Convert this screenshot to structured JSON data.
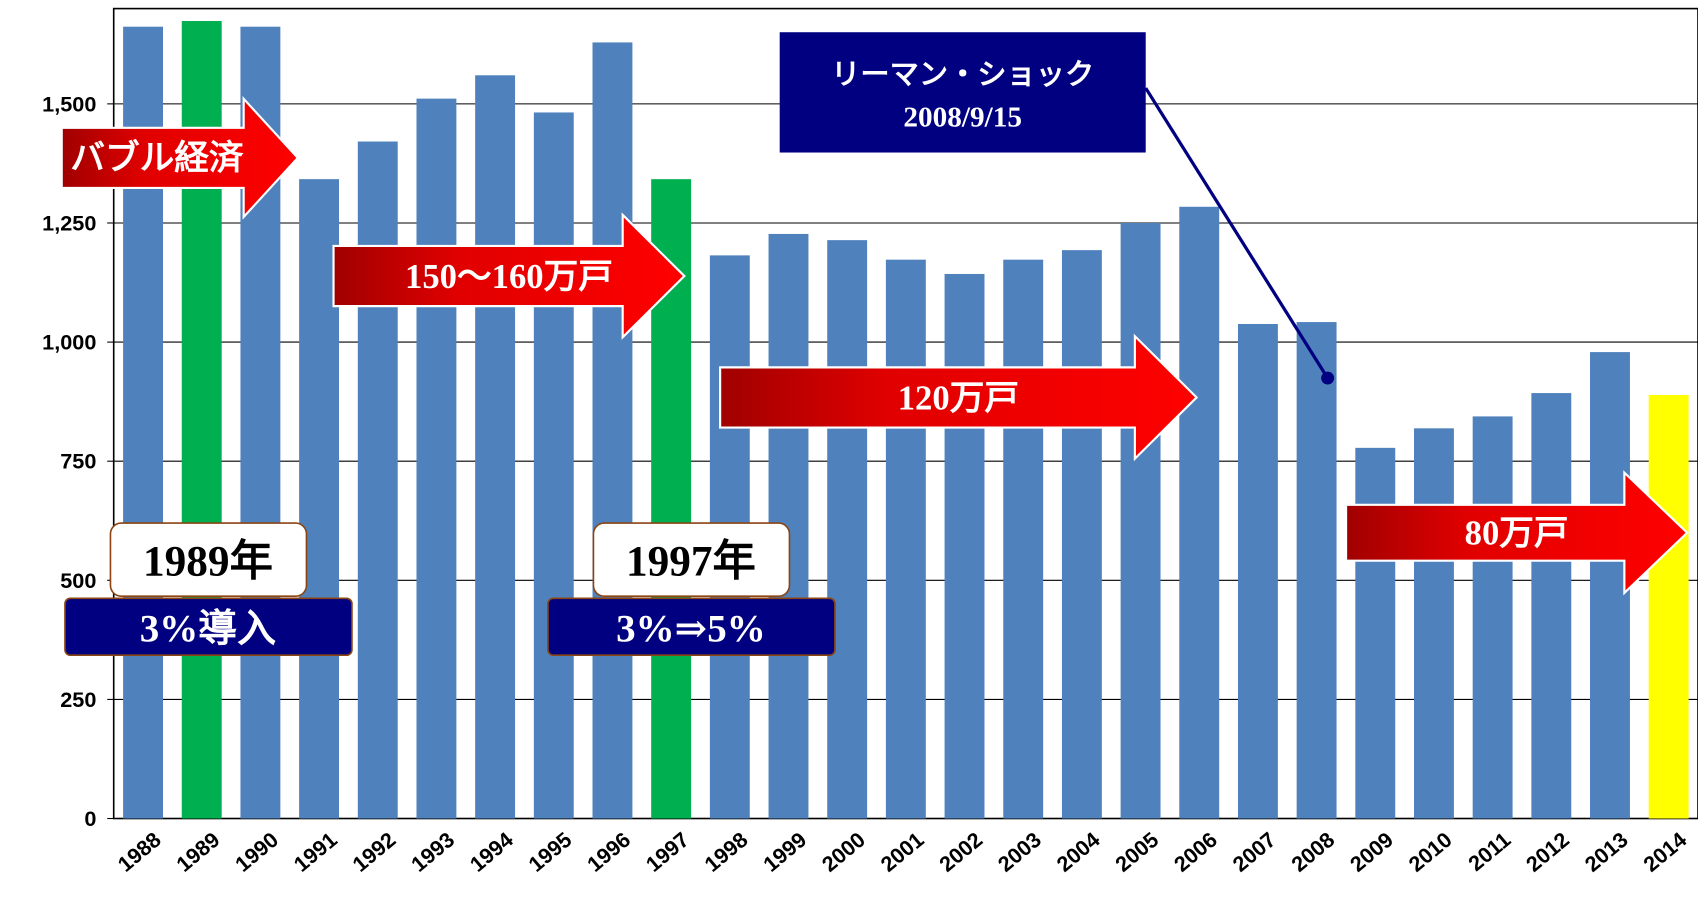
{
  "chart_data": {
    "type": "bar",
    "categories": [
      "1988",
      "1989",
      "1990",
      "1991",
      "1992",
      "1993",
      "1994",
      "1995",
      "1996",
      "1997",
      "1998",
      "1999",
      "2000",
      "2001",
      "2002",
      "2003",
      "2004",
      "2005",
      "2006",
      "2007",
      "2008",
      "2009",
      "2010",
      "2011",
      "2012",
      "2013",
      "2014"
    ],
    "values": [
      1662,
      1674,
      1662,
      1342,
      1421,
      1511,
      1560,
      1482,
      1629,
      1342,
      1182,
      1227,
      1214,
      1173,
      1143,
      1173,
      1193,
      1250,
      1284,
      1038,
      1042,
      778,
      819,
      844,
      893,
      979,
      889
    ],
    "colors": [
      "#4f81bd",
      "#00b050",
      "#4f81bd",
      "#4f81bd",
      "#4f81bd",
      "#4f81bd",
      "#4f81bd",
      "#4f81bd",
      "#4f81bd",
      "#00b050",
      "#4f81bd",
      "#4f81bd",
      "#4f81bd",
      "#4f81bd",
      "#4f81bd",
      "#4f81bd",
      "#4f81bd",
      "#4f81bd",
      "#4f81bd",
      "#4f81bd",
      "#4f81bd",
      "#4f81bd",
      "#4f81bd",
      "#4f81bd",
      "#4f81bd",
      "#4f81bd",
      "#ffff00"
    ],
    "ylim": [
      0,
      1700
    ],
    "yticks": [
      0,
      250,
      500,
      750,
      {
        "value": 1000,
        "label": "1,000"
      },
      {
        "value": 1250,
        "label": "1,250"
      },
      {
        "value": 1500,
        "label": "1,500"
      }
    ],
    "grid": true,
    "annotations": {
      "arrows": [
        "バブル経済",
        "150～160万戸",
        "120万戸",
        "80万戸"
      ],
      "boxes": [
        "1989年",
        "3%導入",
        "1997年",
        "3%⇒5%"
      ],
      "lehman": [
        "リーマン・ショック",
        "2008/9/15"
      ]
    }
  }
}
